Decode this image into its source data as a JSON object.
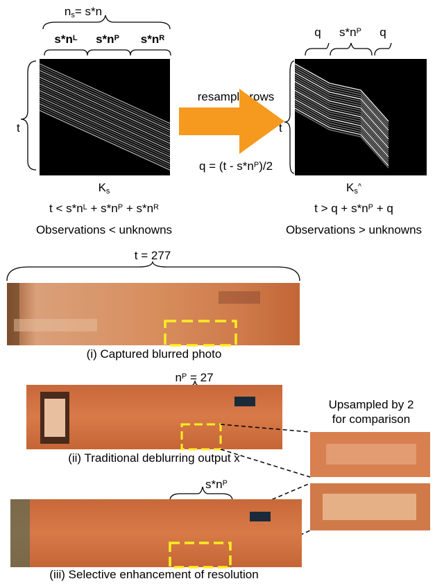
{
  "top_kernel": {
    "total_label": [
      {
        "text": "n"
      },
      {
        "sub": "s"
      },
      {
        "text": "= s*n"
      }
    ],
    "left_label": [
      {
        "text": "s*n"
      },
      {
        "sup": "L"
      }
    ],
    "patch_label": [
      {
        "text": "s*n"
      },
      {
        "sup": "P"
      }
    ],
    "right_label": [
      {
        "text": "s*n"
      },
      {
        "sup": "R"
      }
    ],
    "rows_label": "t",
    "name": [
      {
        "text": "K"
      },
      {
        "sub": "s"
      }
    ],
    "inequality": [
      {
        "text": "t < s*n"
      },
      {
        "sup": "L"
      },
      {
        "text": " + s*n"
      },
      {
        "sup": "P"
      },
      {
        "text": " + s*n"
      },
      {
        "sup": "R"
      }
    ],
    "note": "Observations < unknowns"
  },
  "arrow": {
    "label": "resample rows",
    "formula": [
      {
        "text": "q = (t - s*n"
      },
      {
        "sup": "P"
      },
      {
        "text": ")/2"
      }
    ]
  },
  "resampled_kernel": {
    "left_label": "q",
    "patch_label": [
      {
        "text": "s*n"
      },
      {
        "sup": "P"
      }
    ],
    "right_label": "q",
    "rows_label": "t",
    "name": [
      {
        "text": "K"
      },
      {
        "sub": "s"
      },
      {
        "sup": "^"
      }
    ],
    "inequality": [
      {
        "text": "t > q + s*n"
      },
      {
        "sup": "P"
      },
      {
        "text": " + q"
      }
    ],
    "note": "Observations > unknowns"
  },
  "photos": {
    "blurred_width": "t = 277",
    "blurred_caption": "(i) Captured blurred photo",
    "patch_width": [
      {
        "text": "n"
      },
      {
        "sup": "P"
      },
      {
        "text": " = 27"
      }
    ],
    "traditional_caption": "(ii) Traditional deblurring output x",
    "zoom_note": [
      "Upsampled by 2",
      "for comparison"
    ],
    "enhanced_width": [
      {
        "text": "s*n"
      },
      {
        "sup": "P"
      }
    ],
    "enhanced_caption": "(iii) Selective enhancement of resolution"
  }
}
